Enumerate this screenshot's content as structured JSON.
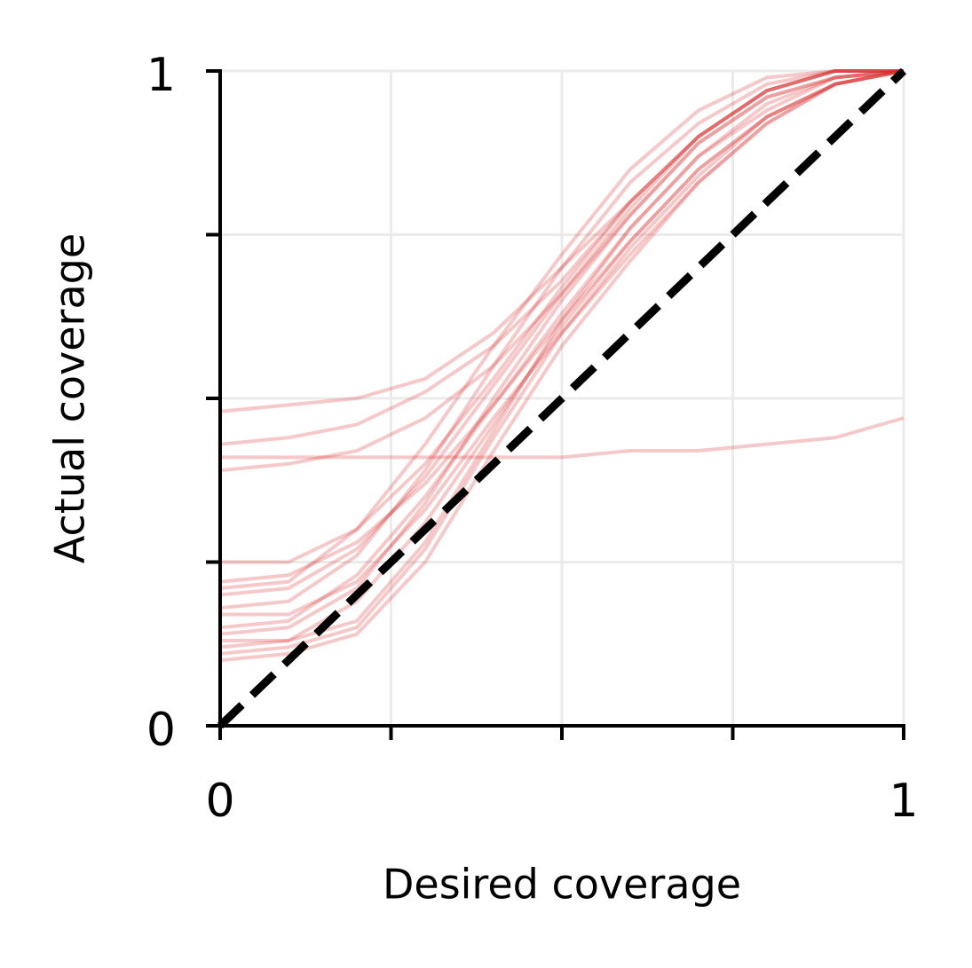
{
  "chart_data": {
    "type": "line",
    "xlabel": "Desired coverage",
    "ylabel": "Actual coverage",
    "x": [
      0,
      0.1,
      0.2,
      0.3,
      0.4,
      0.5,
      0.6,
      0.7,
      0.8,
      0.9,
      1
    ],
    "xlim": [
      0,
      1
    ],
    "ylim": [
      0,
      1
    ],
    "xticks": [
      0,
      1
    ],
    "yticks": [
      0,
      1
    ],
    "xticks_unlabeled": [
      0.25,
      0.5,
      0.75
    ],
    "yticks_unlabeled": [
      0.25,
      0.5,
      0.75
    ],
    "grid": true,
    "alpha": 0.25,
    "series": [
      {
        "color": "#d62728",
        "values": [
          0.15,
          0.16,
          0.23,
          0.35,
          0.49,
          0.63,
          0.76,
          0.87,
          0.95,
          0.99,
          1
        ]
      },
      {
        "color": "#d62728",
        "values": [
          0.2,
          0.21,
          0.27,
          0.38,
          0.52,
          0.66,
          0.79,
          0.9,
          0.97,
          1,
          1
        ]
      },
      {
        "color": "#d62728",
        "values": [
          0.12,
          0.13,
          0.19,
          0.31,
          0.46,
          0.61,
          0.74,
          0.85,
          0.93,
          0.98,
          1
        ]
      },
      {
        "color": "#d62728",
        "values": [
          0.25,
          0.25,
          0.3,
          0.4,
          0.53,
          0.67,
          0.8,
          0.9,
          0.97,
          1,
          1
        ]
      },
      {
        "color": "#d62728",
        "values": [
          0.1,
          0.11,
          0.14,
          0.25,
          0.42,
          0.58,
          0.71,
          0.83,
          0.92,
          0.98,
          1
        ]
      },
      {
        "color": "#d62728",
        "values": [
          0.13,
          0.13,
          0.16,
          0.28,
          0.45,
          0.62,
          0.76,
          0.87,
          0.94,
          0.99,
          1
        ]
      },
      {
        "color": "#d62728",
        "values": [
          0.18,
          0.19,
          0.26,
          0.39,
          0.55,
          0.7,
          0.83,
          0.92,
          0.98,
          1,
          1
        ]
      },
      {
        "color": "#d62728",
        "values": [
          0.22,
          0.23,
          0.28,
          0.37,
          0.49,
          0.62,
          0.74,
          0.85,
          0.93,
          0.98,
          1
        ]
      },
      {
        "color": "#d62728",
        "values": [
          0.17,
          0.17,
          0.22,
          0.33,
          0.47,
          0.6,
          0.72,
          0.83,
          0.92,
          0.98,
          1
        ]
      },
      {
        "color": "#d62728",
        "values": [
          0.14,
          0.15,
          0.21,
          0.34,
          0.5,
          0.65,
          0.78,
          0.89,
          0.96,
          0.99,
          1
        ]
      },
      {
        "color": "#d62728",
        "values": [
          0.48,
          0.49,
          0.5,
          0.53,
          0.6,
          0.7,
          0.8,
          0.9,
          0.97,
          1,
          1
        ]
      },
      {
        "color": "#d62728",
        "values": [
          0.43,
          0.44,
          0.46,
          0.51,
          0.58,
          0.68,
          0.8,
          0.9,
          0.97,
          1,
          1
        ]
      },
      {
        "color": "#d62728",
        "values": [
          0.39,
          0.4,
          0.42,
          0.47,
          0.55,
          0.66,
          0.78,
          0.89,
          0.96,
          0.99,
          1
        ]
      },
      {
        "color": "#d62728",
        "values": [
          0.41,
          0.41,
          0.41,
          0.41,
          0.41,
          0.41,
          0.42,
          0.42,
          0.43,
          0.44,
          0.47
        ]
      },
      {
        "color": "#d62728",
        "values": [
          0.21,
          0.22,
          0.3,
          0.43,
          0.58,
          0.72,
          0.85,
          0.94,
          0.99,
          1,
          1
        ]
      },
      {
        "color": "#d62728",
        "values": [
          0.11,
          0.12,
          0.15,
          0.27,
          0.44,
          0.6,
          0.73,
          0.84,
          0.93,
          0.98,
          1
        ]
      }
    ],
    "reference": {
      "x": [
        0,
        1
      ],
      "values": [
        0,
        1
      ],
      "color": "#000000"
    }
  }
}
